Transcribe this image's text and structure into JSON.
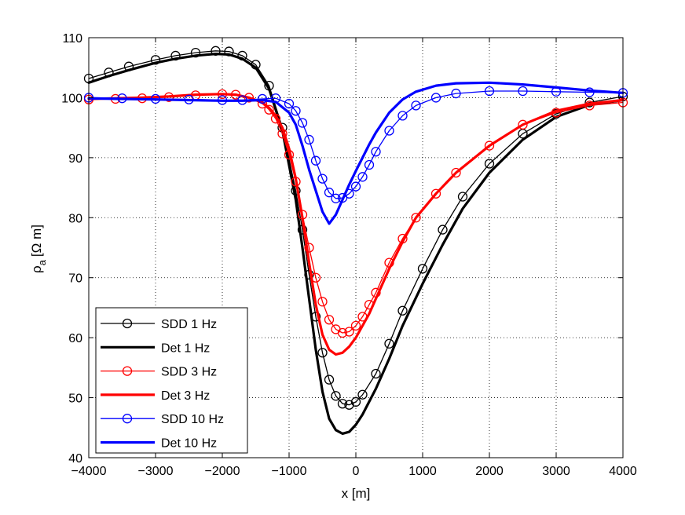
{
  "chart_data": {
    "type": "line",
    "title": "",
    "xlabel": "x [m]",
    "ylabel": "ρ",
    "ylabel_subscript": "a",
    "ylabel_units": "[Ω m]",
    "xlim": [
      -4000,
      4000
    ],
    "ylim": [
      40,
      110
    ],
    "xticks": [
      -4000,
      -3000,
      -2000,
      -1000,
      0,
      1000,
      2000,
      3000,
      4000
    ],
    "xtick_labels": [
      "−4000",
      "−3000",
      "−2000",
      "−1000",
      "0",
      "1000",
      "2000",
      "3000",
      "4000"
    ],
    "yticks": [
      40,
      50,
      60,
      70,
      80,
      90,
      100,
      110
    ],
    "ytick_labels": [
      "40",
      "50",
      "60",
      "70",
      "80",
      "90",
      "100",
      "110"
    ],
    "grid": true,
    "legend_position": "bottom-left",
    "series": [
      {
        "name": "SDD 1 Hz",
        "style": "markers-line",
        "color": "#000000",
        "x": [
          -4000,
          -3700,
          -3400,
          -3000,
          -2700,
          -2400,
          -2100,
          -1900,
          -1700,
          -1500,
          -1300,
          -1100,
          -900,
          -800,
          -700,
          -600,
          -500,
          -400,
          -300,
          -200,
          -100,
          0,
          100,
          300,
          500,
          700,
          1000,
          1300,
          1600,
          2000,
          2500,
          3000,
          3500,
          4000
        ],
        "y": [
          103.2,
          104.2,
          105.2,
          106.3,
          107.0,
          107.5,
          107.8,
          107.7,
          107.0,
          105.5,
          102.0,
          95.0,
          84.5,
          78.0,
          70.5,
          63.5,
          57.5,
          53.0,
          50.3,
          49.0,
          48.8,
          49.3,
          50.5,
          54.0,
          59.0,
          64.5,
          71.5,
          78.0,
          83.5,
          89.0,
          94.0,
          97.3,
          99.2,
          100.2
        ]
      },
      {
        "name": "Det 1 Hz",
        "style": "line",
        "color": "#000000",
        "x": [
          -4000,
          -3700,
          -3400,
          -3000,
          -2700,
          -2400,
          -2100,
          -1900,
          -1700,
          -1500,
          -1300,
          -1100,
          -900,
          -800,
          -700,
          -600,
          -500,
          -400,
          -300,
          -200,
          -100,
          0,
          100,
          300,
          500,
          700,
          1000,
          1300,
          1600,
          2000,
          2500,
          3000,
          3500,
          4000
        ],
        "y": [
          102.5,
          103.6,
          104.6,
          105.8,
          106.5,
          107.0,
          107.3,
          107.2,
          106.5,
          105.0,
          101.5,
          94.5,
          83.0,
          75.0,
          66.5,
          58.0,
          51.0,
          46.5,
          44.6,
          44.0,
          44.3,
          45.5,
          47.2,
          51.5,
          56.5,
          62.0,
          69.0,
          75.5,
          81.5,
          87.5,
          93.0,
          96.8,
          98.8,
          99.6
        ]
      },
      {
        "name": "SDD 3 Hz",
        "style": "markers-line",
        "color": "#ff0000",
        "x": [
          -4000,
          -3600,
          -3200,
          -2800,
          -2400,
          -2000,
          -1800,
          -1600,
          -1400,
          -1300,
          -1200,
          -1100,
          -1000,
          -900,
          -800,
          -700,
          -600,
          -500,
          -400,
          -300,
          -200,
          -100,
          0,
          100,
          200,
          300,
          500,
          700,
          900,
          1200,
          1500,
          2000,
          2500,
          3000,
          3500,
          4000
        ],
        "y": [
          99.7,
          99.8,
          99.9,
          100.1,
          100.4,
          100.6,
          100.5,
          100.0,
          99.0,
          98.0,
          96.5,
          94.0,
          90.5,
          86.0,
          80.5,
          75.0,
          70.0,
          66.0,
          63.0,
          61.4,
          60.8,
          61.0,
          62.0,
          63.5,
          65.5,
          67.5,
          72.5,
          76.5,
          80.0,
          84.0,
          87.5,
          92.0,
          95.5,
          97.5,
          98.7,
          99.2
        ]
      },
      {
        "name": "Det 3 Hz",
        "style": "line",
        "color": "#ff0000",
        "x": [
          -4000,
          -3600,
          -3200,
          -2800,
          -2400,
          -2000,
          -1800,
          -1600,
          -1400,
          -1300,
          -1200,
          -1100,
          -1000,
          -900,
          -800,
          -700,
          -600,
          -500,
          -400,
          -300,
          -200,
          -100,
          0,
          100,
          200,
          300,
          500,
          700,
          900,
          1200,
          1500,
          2000,
          2500,
          3000,
          3500,
          4000
        ],
        "y": [
          99.8,
          99.9,
          100.0,
          100.2,
          100.5,
          100.6,
          100.5,
          100.0,
          99.2,
          98.3,
          97.0,
          95.0,
          91.5,
          86.5,
          80.0,
          72.5,
          65.5,
          60.5,
          58.0,
          57.2,
          57.5,
          58.5,
          60.0,
          62.0,
          64.0,
          66.5,
          71.5,
          76.0,
          80.0,
          84.0,
          87.5,
          92.0,
          95.5,
          97.8,
          99.0,
          99.6
        ]
      },
      {
        "name": "SDD 10 Hz",
        "style": "markers-line",
        "color": "#0000ff",
        "x": [
          -4000,
          -3500,
          -3000,
          -2500,
          -2000,
          -1700,
          -1400,
          -1200,
          -1000,
          -900,
          -800,
          -700,
          -600,
          -500,
          -400,
          -300,
          -200,
          -100,
          0,
          100,
          200,
          300,
          500,
          700,
          900,
          1200,
          1500,
          2000,
          2500,
          3000,
          3500,
          4000
        ],
        "y": [
          100.0,
          99.9,
          99.8,
          99.7,
          99.6,
          99.6,
          99.8,
          99.9,
          99.0,
          97.8,
          95.8,
          93.0,
          89.5,
          86.5,
          84.2,
          83.2,
          83.3,
          84.0,
          85.2,
          86.8,
          88.8,
          91.0,
          94.5,
          97.0,
          98.7,
          100.0,
          100.7,
          101.1,
          101.1,
          101.0,
          100.9,
          100.8
        ]
      },
      {
        "name": "Det 10 Hz",
        "style": "line",
        "color": "#0000ff",
        "x": [
          -4000,
          -3500,
          -3000,
          -2500,
          -2000,
          -1700,
          -1400,
          -1200,
          -1000,
          -900,
          -800,
          -700,
          -600,
          -500,
          -400,
          -300,
          -200,
          -100,
          0,
          100,
          200,
          300,
          500,
          700,
          900,
          1200,
          1500,
          2000,
          2500,
          3000,
          3500,
          4000
        ],
        "y": [
          99.9,
          99.8,
          99.7,
          99.6,
          99.5,
          99.5,
          99.6,
          99.3,
          97.5,
          95.5,
          92.0,
          88.0,
          84.5,
          81.0,
          79.0,
          80.5,
          83.0,
          85.5,
          87.8,
          90.0,
          92.2,
          94.2,
          97.5,
          99.7,
          101.0,
          102.0,
          102.4,
          102.5,
          102.2,
          101.7,
          101.2,
          100.8
        ]
      }
    ]
  }
}
